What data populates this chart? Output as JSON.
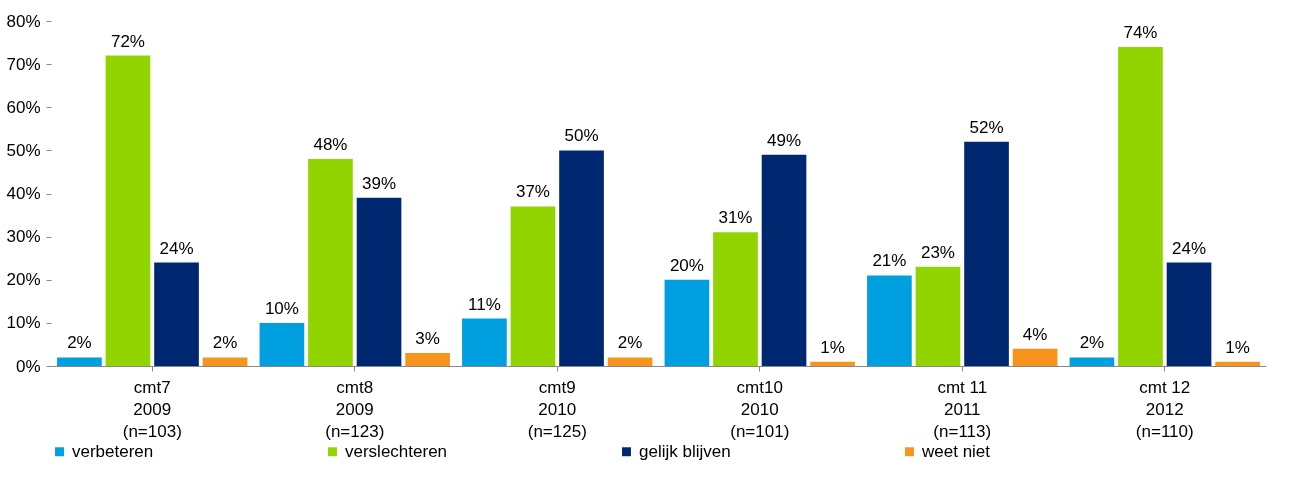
{
  "chart_data": {
    "type": "bar",
    "categories": [
      "cmt7\n2009\n(n=103)",
      "cmt8\n2009\n(n=123)",
      "cmt9\n2010\n(n=125)",
      "cmt10\n2010\n(n=101)",
      "cmt 11\n2011\n(n=113)",
      "cmt 12\n2012\n(n=110)"
    ],
    "series": [
      {
        "name": "verbeteren",
        "color": "#00a0e0",
        "values": [
          2,
          10,
          11,
          20,
          21,
          2
        ],
        "value_labels": [
          "2%",
          "10%",
          "11%",
          "20%",
          "21%",
          "2%"
        ]
      },
      {
        "name": "verslechteren",
        "color": "#92d400",
        "values": [
          72,
          48,
          37,
          31,
          23,
          74
        ],
        "value_labels": [
          "72%",
          "48%",
          "37%",
          "31%",
          "23%",
          "74%"
        ]
      },
      {
        "name": "gelijk blijven",
        "color": "#002870",
        "values": [
          24,
          39,
          50,
          49,
          52,
          24
        ],
        "value_labels": [
          "24%",
          "39%",
          "50%",
          "49%",
          "52%",
          "24%"
        ]
      },
      {
        "name": "weet niet",
        "color": "#f7941d",
        "values": [
          2,
          3,
          2,
          1,
          4,
          1
        ],
        "value_labels": [
          "2%",
          "3%",
          "2%",
          "1%",
          "4%",
          "1%"
        ]
      }
    ],
    "ylim": [
      0,
      80
    ],
    "yticks": [
      {
        "value": 0,
        "label": "0%"
      },
      {
        "value": 10,
        "label": "10%"
      },
      {
        "value": 20,
        "label": "20%"
      },
      {
        "value": 30,
        "label": "30%"
      },
      {
        "value": 40,
        "label": "40%"
      },
      {
        "value": 50,
        "label": "50%"
      },
      {
        "value": 60,
        "label": "60%"
      },
      {
        "value": 70,
        "label": "70%"
      },
      {
        "value": 80,
        "label": "80%"
      }
    ],
    "grid": false,
    "legend": "bottom"
  }
}
